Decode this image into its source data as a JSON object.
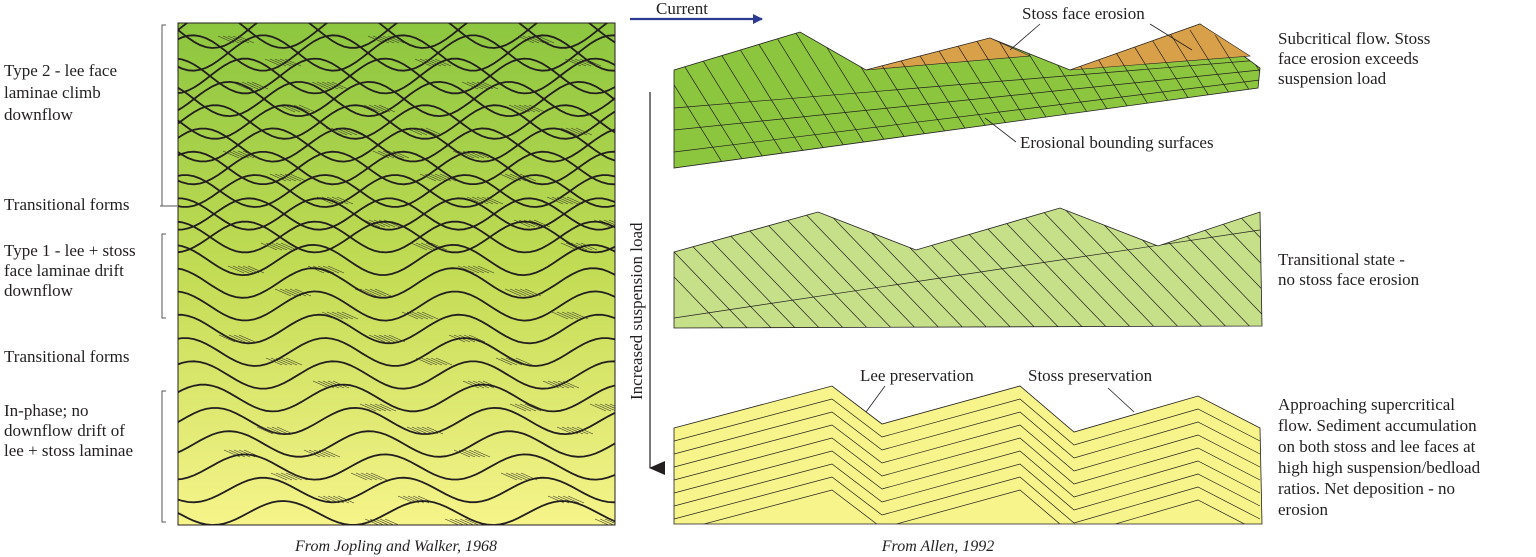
{
  "left_panel": {
    "labels": [
      {
        "lines": [
          "Type 2 - lee face",
          "laminae climb",
          "downflow"
        ]
      },
      {
        "lines": [
          "Transitional forms"
        ]
      },
      {
        "lines": [
          "Type 1 - lee + stoss",
          "face laminae drift",
          "downflow"
        ]
      },
      {
        "lines": [
          "Transitional forms"
        ]
      },
      {
        "lines": [
          "In-phase; no",
          "downflow drift of",
          "lee + stoss laminae"
        ]
      }
    ],
    "caption": "From Jopling and Walker, 1968"
  },
  "arrows": {
    "current_label": "Current",
    "suspension_label": "Increased suspension load",
    "arrow_color": "#2b3990"
  },
  "right_panel": {
    "callouts": {
      "stoss_face_erosion": "Stoss face erosion",
      "erosional_bounding": "Erosional bounding surfaces",
      "lee_preservation": "Lee preservation",
      "stoss_preservation": "Stoss preservation"
    },
    "descriptions": [
      {
        "lines": [
          "Subcritical flow. Stoss",
          "face erosion exceeds",
          "suspension load"
        ]
      },
      {
        "lines": [
          "Transitional state -",
          "no stoss face erosion"
        ]
      },
      {
        "lines": [
          "Approaching supercritical",
          "flow. Sediment accumulation",
          "on both stoss and lee faces at",
          "high high suspension/bedload",
          "ratios. Net deposition - no",
          "erosion"
        ]
      }
    ],
    "caption": "From Allen, 1992"
  },
  "colors": {
    "green_top": "#8cc63f",
    "green_light": "#c6e08a",
    "yellow": "#f6f48a",
    "orange": "#d9a04a"
  }
}
